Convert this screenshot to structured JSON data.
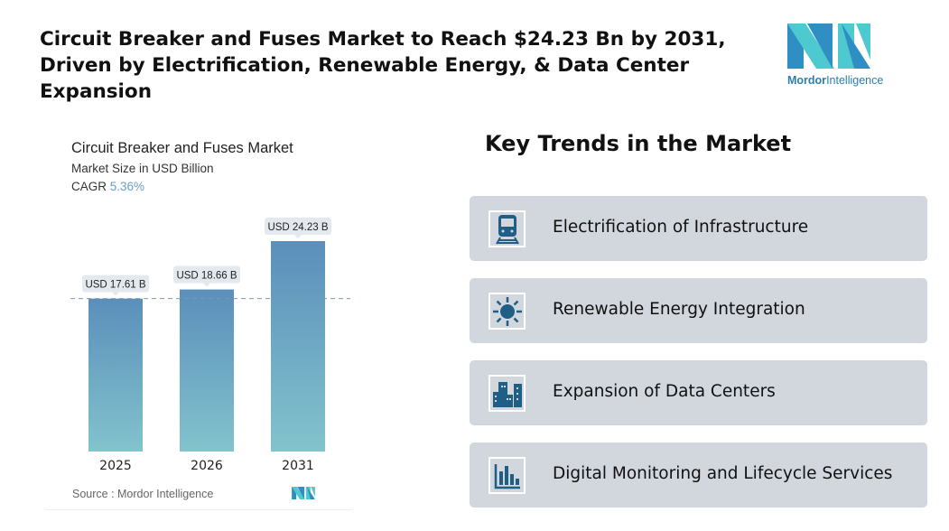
{
  "headline": "Circuit Breaker and Fuses Market to Reach $24.23 Bn by 2031, Driven by Electrification, Renewable Energy, & Data Center Expansion",
  "logo": {
    "brand_bold": "Mordor",
    "brand_light": "Intelligence"
  },
  "chart_data": {
    "type": "bar",
    "title": "Circuit Breaker and Fuses Market",
    "subtitle": "Market Size in USD Billion",
    "cagr_label": "CAGR",
    "cagr_value": "5.36%",
    "categories": [
      "2025",
      "2026",
      "2031"
    ],
    "values": [
      17.61,
      18.66,
      24.23
    ],
    "data_labels": [
      "USD 17.61 B",
      "USD 18.66 B",
      "USD 24.23 B"
    ],
    "reference_line": 17.61,
    "colors": {
      "bar_top": "#5b8fbb",
      "bar_bottom": "#82c3cc"
    },
    "grid": false,
    "source": "Source :  Mordor Intelligence"
  },
  "trends": {
    "title": "Key Trends in the Market",
    "items": [
      {
        "icon": "train-icon",
        "label": "Electrification of Infrastructure"
      },
      {
        "icon": "sun-icon",
        "label": "Renewable Energy Integration"
      },
      {
        "icon": "buildings-icon",
        "label": "Expansion of Data Centers"
      },
      {
        "icon": "bar-chart-icon",
        "label": "Digital Monitoring and Lifecycle Services"
      }
    ]
  }
}
